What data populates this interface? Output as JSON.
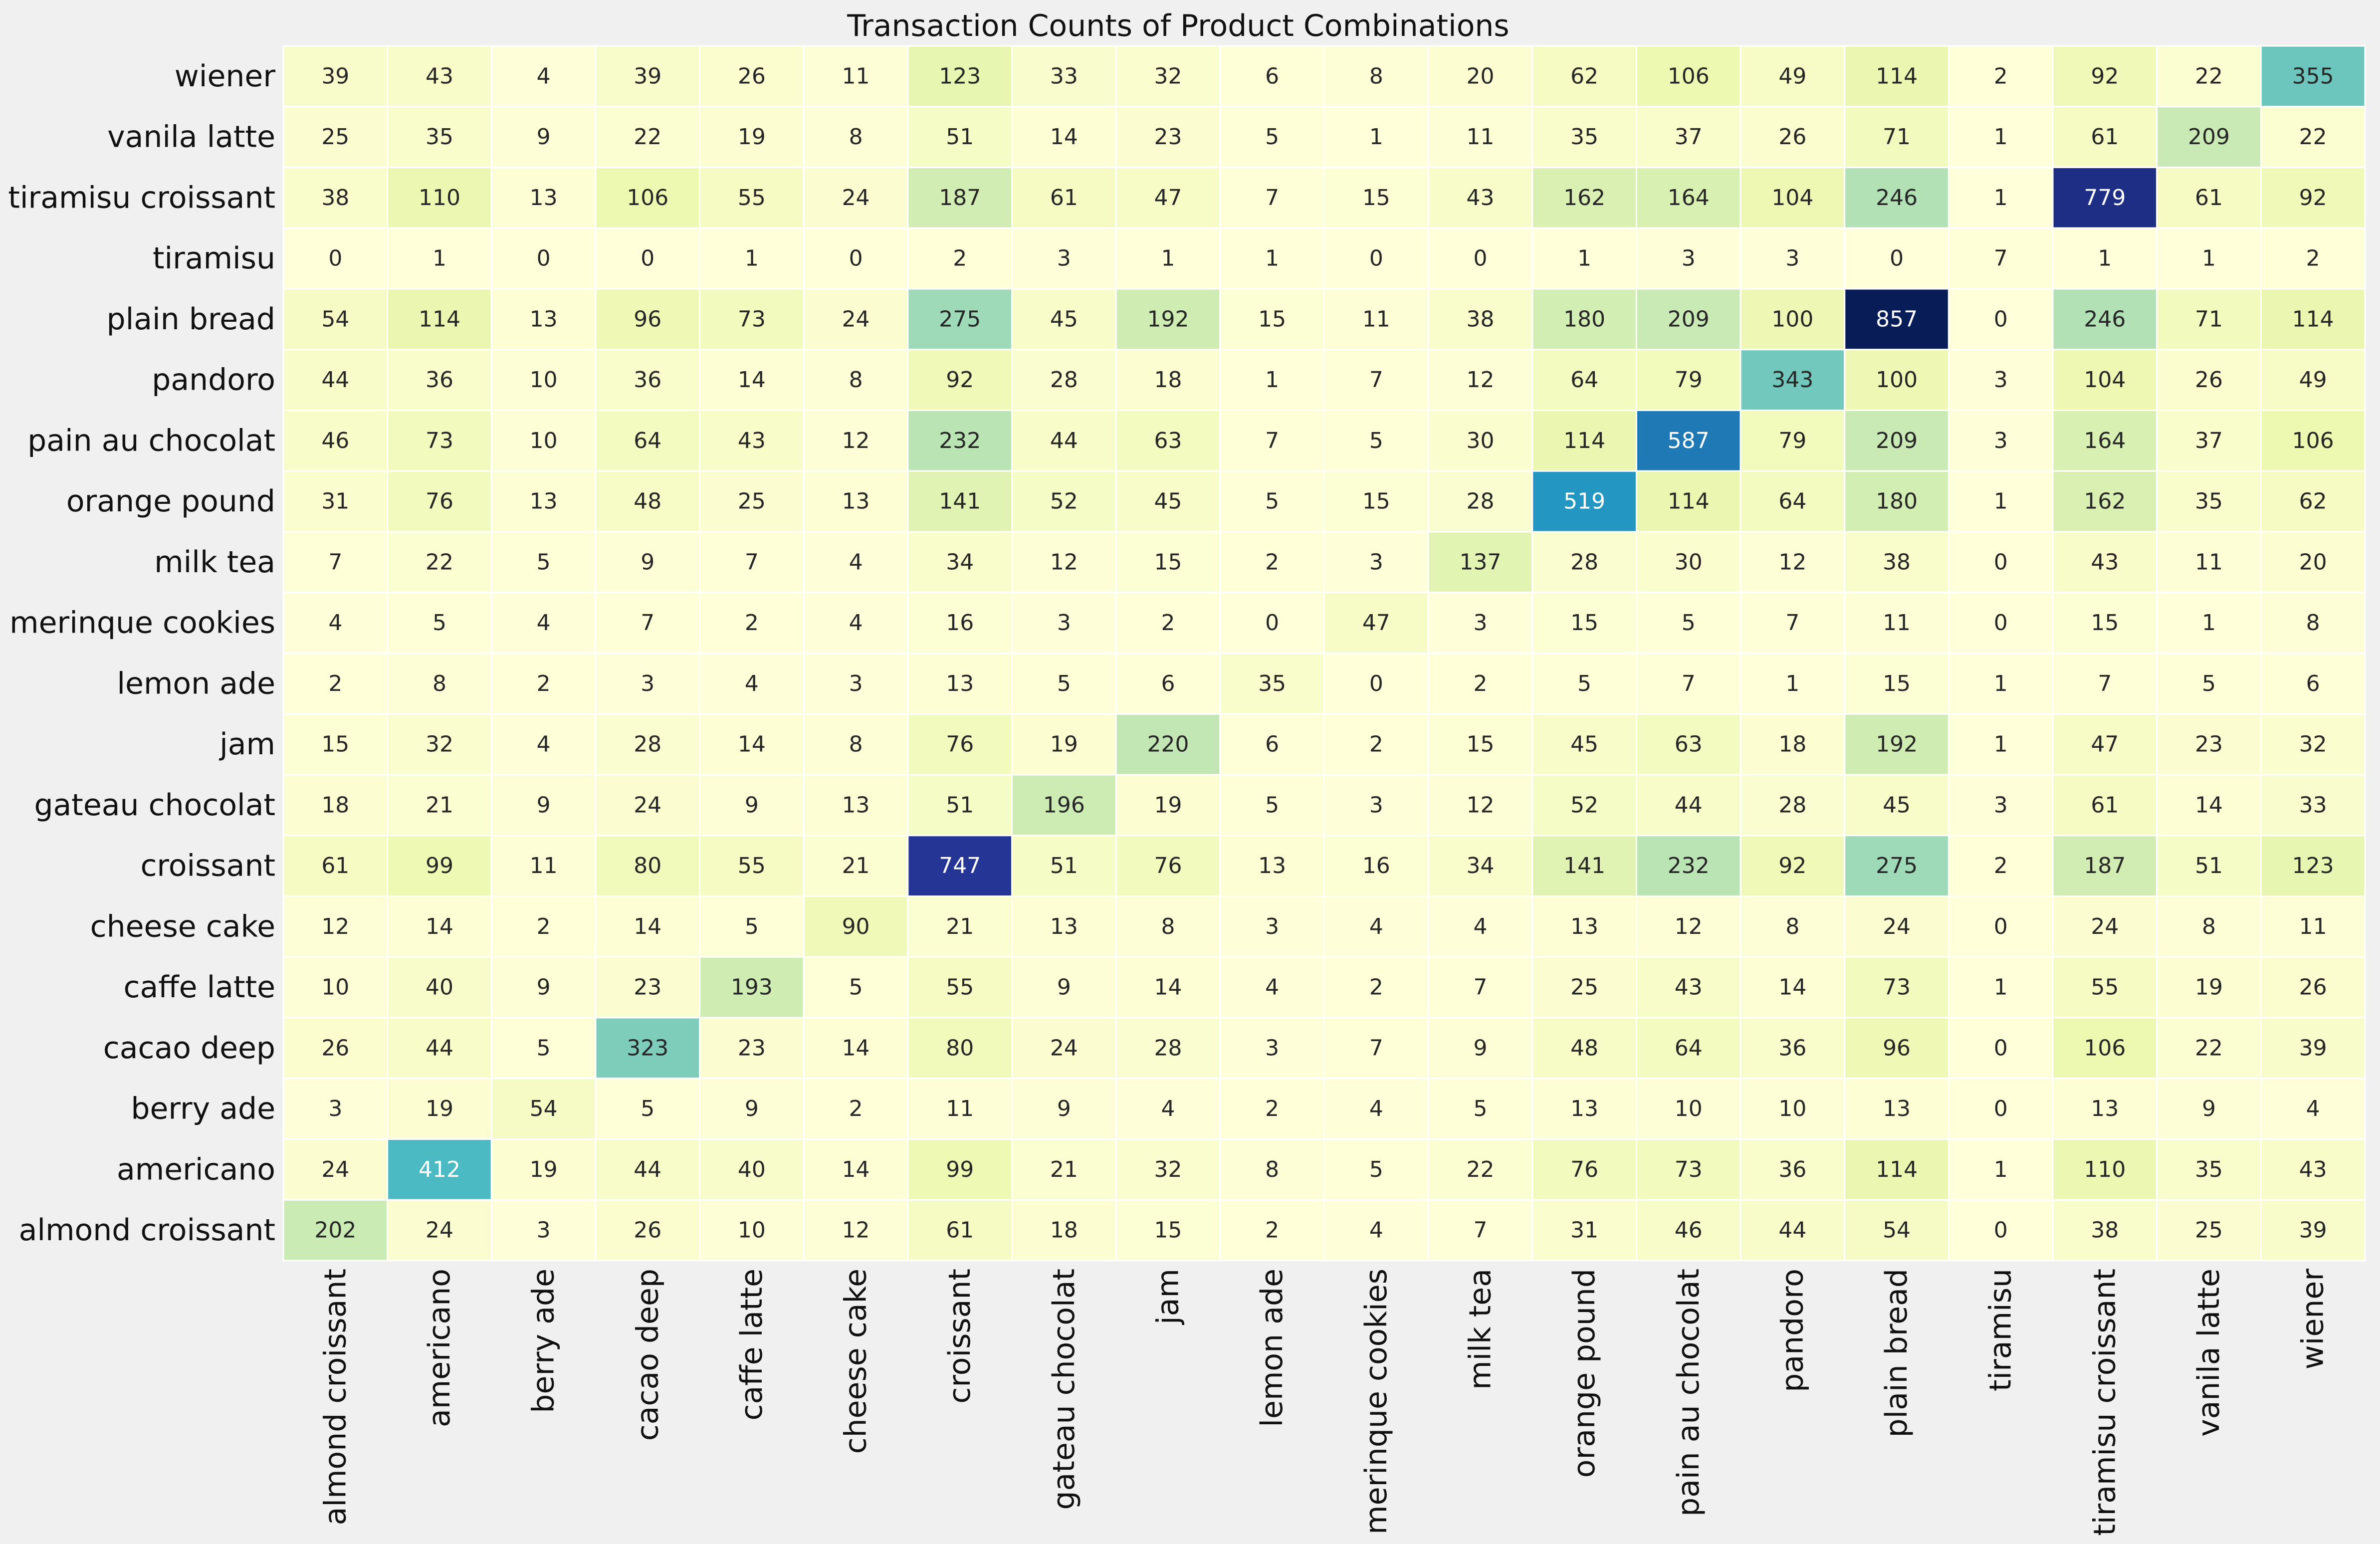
{
  "chart_data": {
    "type": "heatmap",
    "title": "Transaction Counts of Product Combinations",
    "xlabel": "",
    "ylabel": "",
    "x_categories": [
      "almond croissant",
      "americano",
      "berry ade",
      "cacao deep",
      "caffe latte",
      "cheese cake",
      "croissant",
      "gateau chocolat",
      "jam",
      "lemon ade",
      "merinque cookies",
      "milk tea",
      "orange pound",
      "pain au chocolat",
      "pandoro",
      "plain bread",
      "tiramisu",
      "tiramisu croissant",
      "vanila latte",
      "wiener"
    ],
    "y_categories_top_to_bottom": [
      "wiener",
      "vanila latte",
      "tiramisu croissant",
      "tiramisu",
      "plain bread",
      "pandoro",
      "pain au chocolat",
      "orange pound",
      "milk tea",
      "merinque cookies",
      "lemon ade",
      "jam",
      "gateau chocolat",
      "croissant",
      "cheese cake",
      "caffe latte",
      "cacao deep",
      "berry ade",
      "americano",
      "almond croissant"
    ],
    "values": [
      [
        39,
        43,
        4,
        39,
        26,
        11,
        123,
        33,
        32,
        6,
        8,
        20,
        62,
        106,
        49,
        114,
        2,
        92,
        22,
        355
      ],
      [
        25,
        35,
        9,
        22,
        19,
        8,
        51,
        14,
        23,
        5,
        1,
        11,
        35,
        37,
        26,
        71,
        1,
        61,
        209,
        22
      ],
      [
        38,
        110,
        13,
        106,
        55,
        24,
        187,
        61,
        47,
        7,
        15,
        43,
        162,
        164,
        104,
        246,
        1,
        779,
        61,
        92
      ],
      [
        0,
        1,
        0,
        0,
        1,
        0,
        2,
        3,
        1,
        1,
        0,
        0,
        1,
        3,
        3,
        0,
        7,
        1,
        1,
        2
      ],
      [
        54,
        114,
        13,
        96,
        73,
        24,
        275,
        45,
        192,
        15,
        11,
        38,
        180,
        209,
        100,
        857,
        0,
        246,
        71,
        114
      ],
      [
        44,
        36,
        10,
        36,
        14,
        8,
        92,
        28,
        18,
        1,
        7,
        12,
        64,
        79,
        343,
        100,
        3,
        104,
        26,
        49
      ],
      [
        46,
        73,
        10,
        64,
        43,
        12,
        232,
        44,
        63,
        7,
        5,
        30,
        114,
        587,
        79,
        209,
        3,
        164,
        37,
        106
      ],
      [
        31,
        76,
        13,
        48,
        25,
        13,
        141,
        52,
        45,
        5,
        15,
        28,
        519,
        114,
        64,
        180,
        1,
        162,
        35,
        62
      ],
      [
        7,
        22,
        5,
        9,
        7,
        4,
        34,
        12,
        15,
        2,
        3,
        137,
        28,
        30,
        12,
        38,
        0,
        43,
        11,
        20
      ],
      [
        4,
        5,
        4,
        7,
        2,
        4,
        16,
        3,
        2,
        0,
        47,
        3,
        15,
        5,
        7,
        11,
        0,
        15,
        1,
        8
      ],
      [
        2,
        8,
        2,
        3,
        4,
        3,
        13,
        5,
        6,
        35,
        0,
        2,
        5,
        7,
        1,
        15,
        1,
        7,
        5,
        6
      ],
      [
        15,
        32,
        4,
        28,
        14,
        8,
        76,
        19,
        220,
        6,
        2,
        15,
        45,
        63,
        18,
        192,
        1,
        47,
        23,
        32
      ],
      [
        18,
        21,
        9,
        24,
        9,
        13,
        51,
        196,
        19,
        5,
        3,
        12,
        52,
        44,
        28,
        45,
        3,
        61,
        14,
        33
      ],
      [
        61,
        99,
        11,
        80,
        55,
        21,
        747,
        51,
        76,
        13,
        16,
        34,
        141,
        232,
        92,
        275,
        2,
        187,
        51,
        123
      ],
      [
        12,
        14,
        2,
        14,
        5,
        90,
        21,
        13,
        8,
        3,
        4,
        4,
        13,
        12,
        8,
        24,
        0,
        24,
        8,
        11
      ],
      [
        10,
        40,
        9,
        23,
        193,
        5,
        55,
        9,
        14,
        4,
        2,
        7,
        25,
        43,
        14,
        73,
        1,
        55,
        19,
        26
      ],
      [
        26,
        44,
        5,
        323,
        23,
        14,
        80,
        24,
        28,
        3,
        7,
        9,
        48,
        64,
        36,
        96,
        0,
        106,
        22,
        39
      ],
      [
        3,
        19,
        54,
        5,
        9,
        2,
        11,
        9,
        4,
        2,
        4,
        5,
        13,
        10,
        10,
        13,
        0,
        13,
        9,
        4
      ],
      [
        24,
        412,
        19,
        44,
        40,
        14,
        99,
        21,
        32,
        8,
        5,
        22,
        76,
        73,
        36,
        114,
        1,
        110,
        35,
        43
      ],
      [
        202,
        24,
        3,
        26,
        10,
        12,
        61,
        18,
        15,
        2,
        4,
        7,
        31,
        46,
        44,
        54,
        0,
        38,
        25,
        39
      ]
    ],
    "value_range": [
      0,
      857
    ],
    "colormap": "YlGnBu",
    "annotated": true,
    "colorbar": false,
    "grid": false
  },
  "colors": {
    "background": "#f0f0f0",
    "cell_border": "#ffffff",
    "text_dark": "#262626",
    "text_light": "#ffffff"
  }
}
